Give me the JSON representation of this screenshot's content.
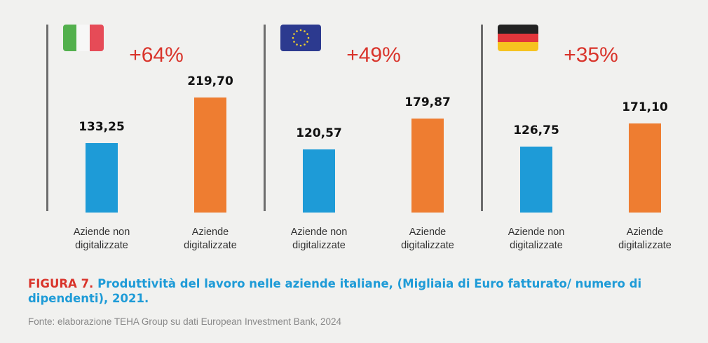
{
  "chart_data": [
    {
      "type": "bar",
      "annotation": "+64%",
      "categories": [
        "Aziende non digitalizzate",
        "Aziende digitalizzate"
      ],
      "values": [
        133.25,
        219.7
      ],
      "value_labels": [
        "133,25",
        "219,70"
      ],
      "colors": [
        "#1e9bd7",
        "#ee7d31"
      ]
    },
    {
      "type": "bar",
      "annotation": "+49%",
      "categories": [
        "Aziende non digitalizzate",
        "Aziende digitalizzate"
      ],
      "values": [
        120.57,
        179.87
      ],
      "value_labels": [
        "120,57",
        "179,87"
      ],
      "colors": [
        "#1e9bd7",
        "#ee7d31"
      ]
    },
    {
      "type": "bar",
      "annotation": "+35%",
      "categories": [
        "Aziende non digitalizzate",
        "Aziende digitalizzate"
      ],
      "values": [
        126.75,
        171.1
      ],
      "value_labels": [
        "126,75",
        "171,10"
      ],
      "colors": [
        "#1e9bd7",
        "#ee7d31"
      ]
    }
  ],
  "caption": {
    "label": "FIGURA 7.",
    "title": "Produttività del lavoro nelle aziende italiane, (Migliaia di Euro fatturato/ numero di dipendenti), 2021.",
    "source": "Fonte: elaborazione TEHA Group su dati European Investment Bank, 2024"
  }
}
